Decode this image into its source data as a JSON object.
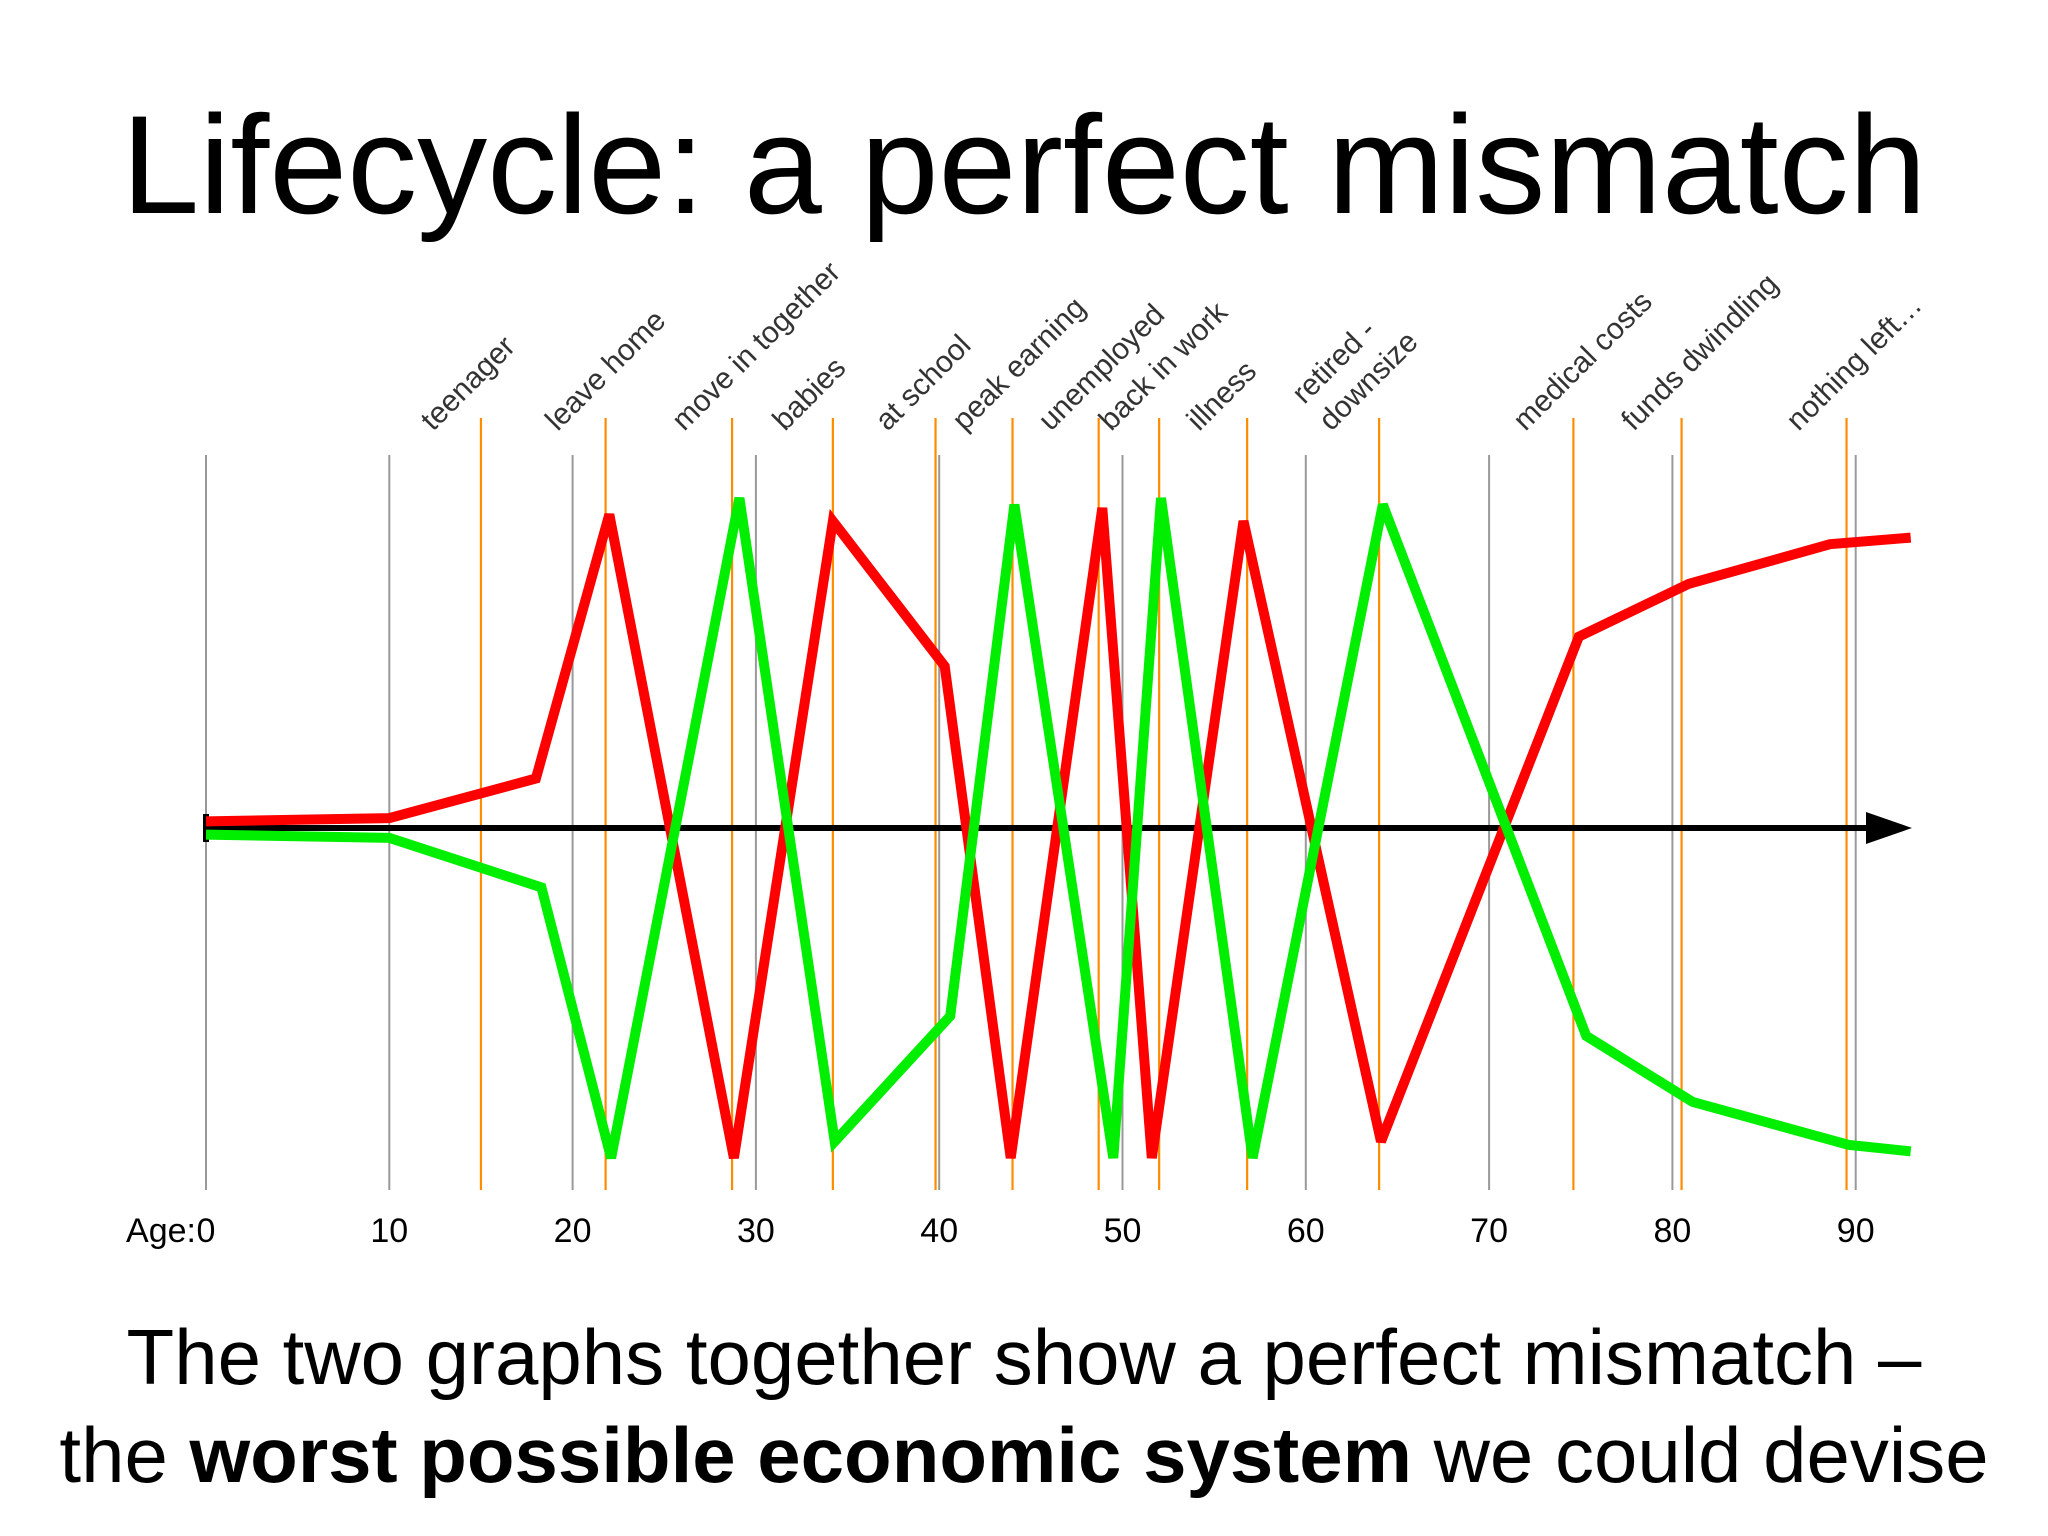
{
  "title": "Lifecycle: a perfect mismatch",
  "caption": {
    "line1": "The two graphs together show a perfect mismatch –",
    "line2_before": "the ",
    "line2_bold": "worst possible economic system",
    "line2_after": " we could devise"
  },
  "colors": {
    "series_a": "#ff0000",
    "series_b": "#00ee00",
    "event_line": "#ff8c00",
    "grid_line": "#999999",
    "axis": "#000000"
  },
  "chart_data": {
    "type": "line",
    "x_axis_prefix": "Age:",
    "xlim": [
      0,
      93
    ],
    "ylim": [
      -1,
      1
    ],
    "x_ticks": [
      0,
      10,
      20,
      30,
      40,
      50,
      60,
      70,
      80,
      90
    ],
    "grid": "vertical",
    "events": [
      {
        "label": "teenager",
        "age": 15
      },
      {
        "label": "leave home",
        "age": 21.8
      },
      {
        "label": "move in together",
        "age": 28.7
      },
      {
        "label": "babies",
        "age": 34.2
      },
      {
        "label": "at school",
        "age": 39.8
      },
      {
        "label": "peak earning",
        "age": 44
      },
      {
        "label": "unemployed",
        "age": 48.7
      },
      {
        "label": "back in work",
        "age": 52
      },
      {
        "label": "illness",
        "age": 56.8
      },
      {
        "label": "retired -",
        "label2": "downsize",
        "age": 64
      },
      {
        "label": "medical costs",
        "age": 74.6
      },
      {
        "label": "funds dwindling",
        "age": 80.5
      },
      {
        "label": "nothing left…",
        "age": 89.5
      }
    ],
    "series": [
      {
        "x": [
          0,
          10,
          18,
          22,
          28.8,
          34.2,
          40.3,
          43.9,
          48.9,
          51.6,
          56.6,
          64.1,
          74.9,
          80.9,
          88.6,
          93
        ],
        "y": [
          0.02,
          0.03,
          0.15,
          0.95,
          -1.0,
          0.93,
          0.49,
          -1.0,
          0.97,
          -1.0,
          0.93,
          -0.95,
          0.58,
          0.74,
          0.86,
          0.88
        ]
      },
      {
        "x": [
          0,
          10,
          18.3,
          22.1,
          29.1,
          34.3,
          40.6,
          44.1,
          49.5,
          52.1,
          57.1,
          64.2,
          75.3,
          81.1,
          89.6,
          93
        ],
        "y": [
          -0.02,
          -0.03,
          -0.18,
          -1.0,
          1.0,
          -0.95,
          -0.57,
          0.98,
          -1.0,
          1.0,
          -1.0,
          0.98,
          -0.63,
          -0.83,
          -0.96,
          -0.98
        ]
      }
    ]
  }
}
